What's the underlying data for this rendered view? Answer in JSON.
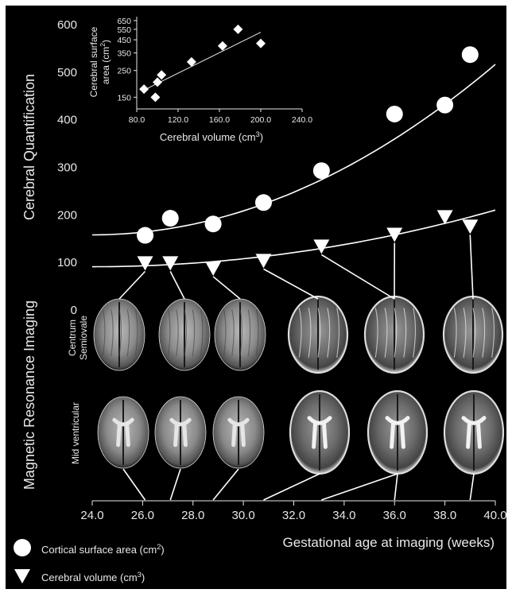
{
  "chart_data": {
    "type": "scatter",
    "xlabel": "Gestational age at imaging (weeks)",
    "ylabel": "Cerebral Quantification",
    "xlim": [
      24,
      40
    ],
    "ylim": [
      0,
      600
    ],
    "x_ticks": [
      "24.0",
      "26.0",
      "28.0",
      "30.0",
      "32.0",
      "34.0",
      "36.0",
      "38.0",
      "40.0"
    ],
    "y_ticks": [
      "0",
      "100",
      "200",
      "300",
      "400",
      "500",
      "600"
    ],
    "series": [
      {
        "name": "Cortical surface area (cm",
        "name_sup": "2",
        "name_end": ")",
        "marker": "circle",
        "x": [
          26.1,
          27.1,
          28.8,
          30.8,
          33.1,
          36.0,
          38.0,
          39.0
        ],
        "y": [
          157,
          193,
          181,
          226,
          293,
          412,
          431,
          537
        ]
      },
      {
        "name": "Cerebral volume (cm",
        "name_sup": "3",
        "name_end": ")",
        "marker": "triangle-down",
        "x": [
          26.1,
          27.1,
          28.8,
          30.8,
          33.1,
          36.0,
          38.0,
          39.0
        ],
        "y": [
          98,
          98,
          87,
          103,
          133,
          158,
          195,
          175
        ]
      }
    ],
    "fits": [
      {
        "series": "cortical",
        "x_range": [
          24,
          40
        ],
        "coef": [
          158,
          0,
          1.4
        ]
      },
      {
        "series": "volume",
        "x_range": [
          24,
          40
        ],
        "coef": [
          91,
          0,
          0.465
        ]
      }
    ],
    "inset": {
      "type": "scatter",
      "xlabel": "Cerebral volume (cm",
      "xlabel_sup": "3",
      "xlabel_end": ")",
      "ylabel_line1": "Cerebral surface",
      "ylabel_line2": "area (cm",
      "ylabel_sup": "2",
      "ylabel_end": ")",
      "xlim": [
        80,
        240
      ],
      "x_ticks": [
        "80.0",
        "120.0",
        "160.0",
        "200.0",
        "240.0"
      ],
      "y_scale": "log",
      "ylim": [
        120,
        700
      ],
      "y_ticks": [
        "150",
        "250",
        "350",
        "450",
        "550",
        "650"
      ],
      "x": [
        87,
        98,
        100,
        104,
        133,
        163,
        178,
        200
      ],
      "y": [
        175,
        150,
        200,
        230,
        295,
        400,
        550,
        420
      ],
      "fit": {
        "x0": 87,
        "y0": 172,
        "x1": 200,
        "y1": 520
      }
    },
    "mri_rows": [
      "Centrum Semiovale",
      "Mid ventricular"
    ],
    "mri_row_label_lines": [
      [
        "Centrum",
        "Semiovale"
      ],
      [
        "Mid ventricular"
      ]
    ],
    "mri_axis_label": "Magnetic Resonance Imaging",
    "mri_scan_ages": [
      26.1,
      27.1,
      28.8,
      30.8,
      33.1,
      36.0,
      38.0,
      39.0
    ]
  },
  "colors": {
    "background": "#000000",
    "foreground": "#e8e8e8",
    "marker": "#ffffff"
  }
}
